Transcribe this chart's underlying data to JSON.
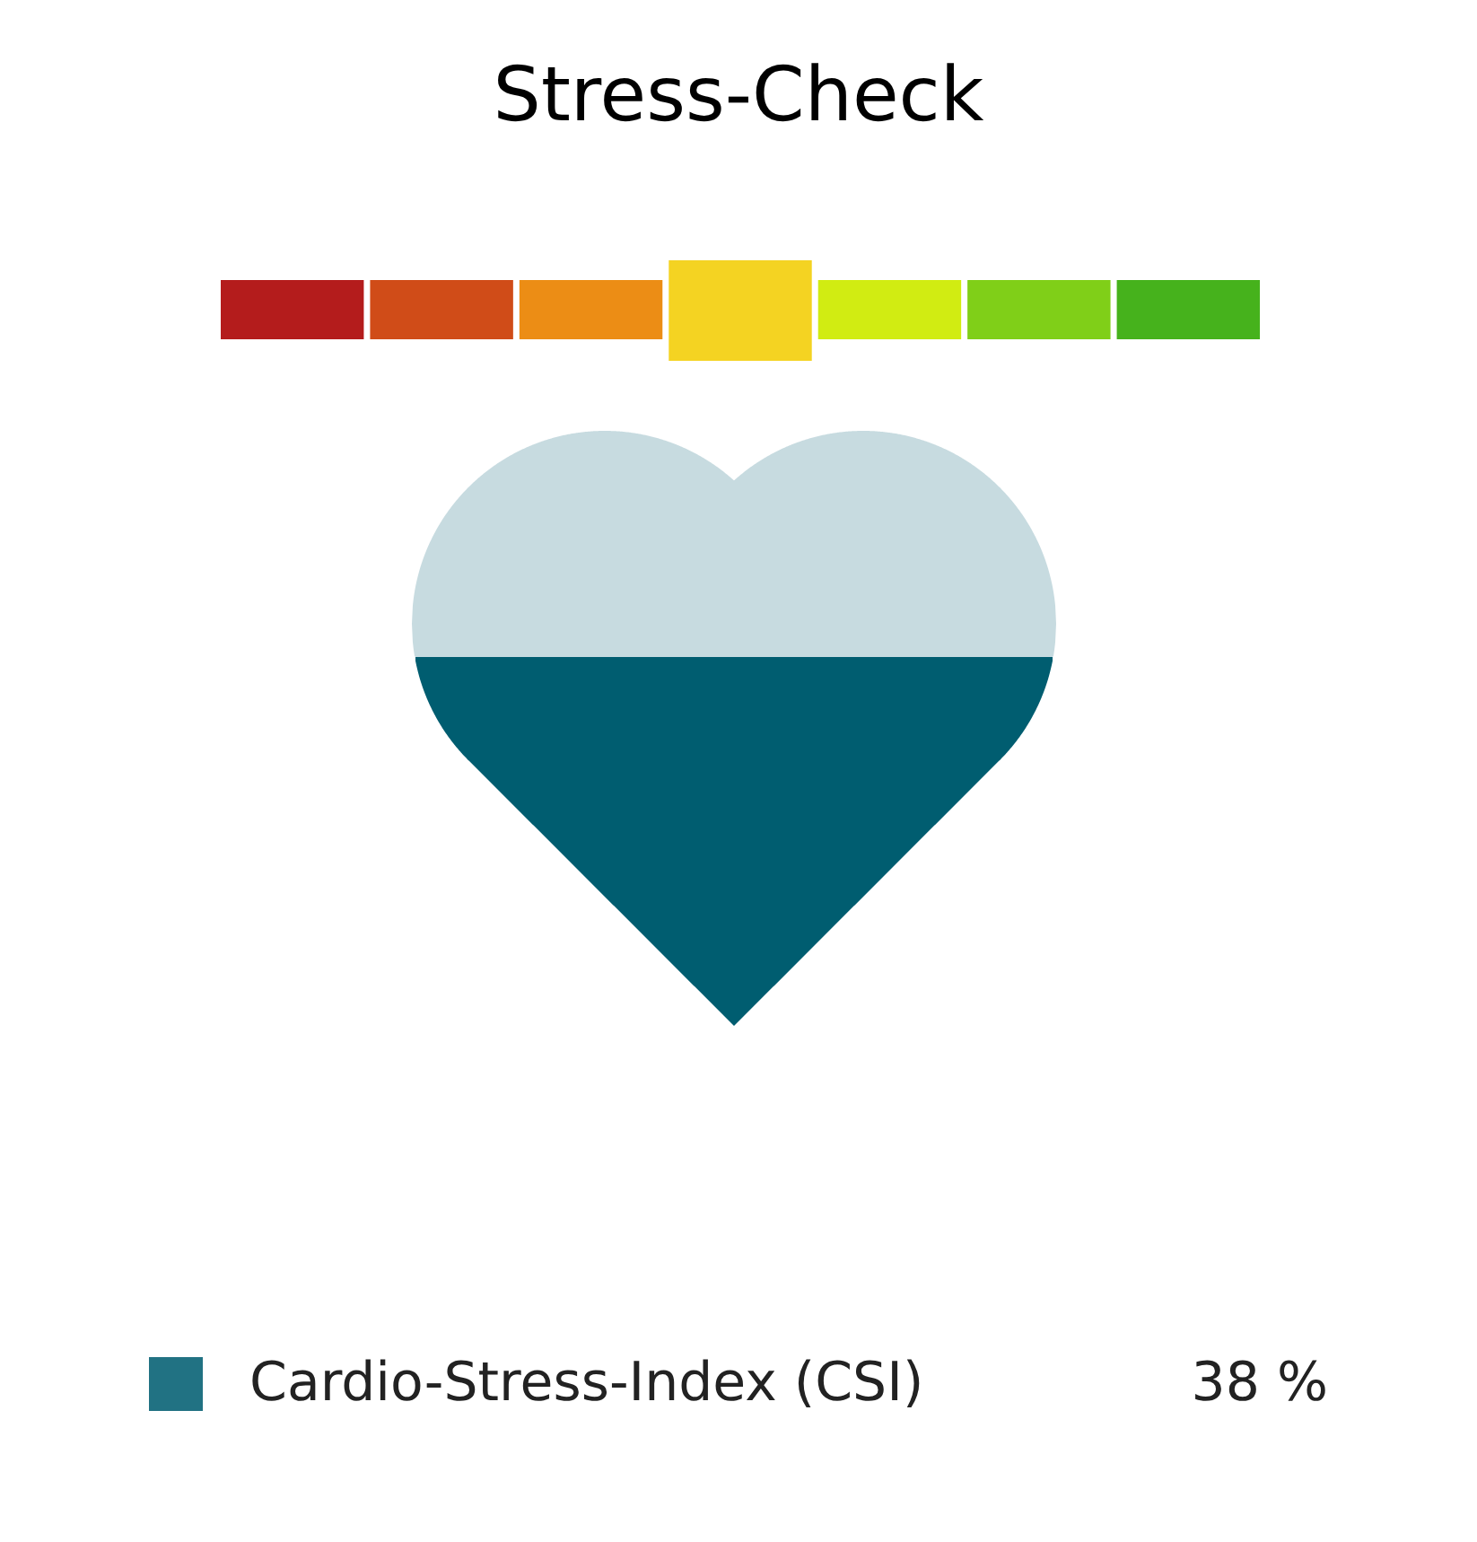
{
  "chart_data": {
    "type": "other",
    "title": "Stress-Check",
    "series": [
      {
        "name": "Cardio-Stress-Index (CSI)",
        "color": "#005d70",
        "values": [
          38
        ],
        "value_labels": [
          "38 %"
        ]
      }
    ],
    "legend": "bottom"
  }
}
